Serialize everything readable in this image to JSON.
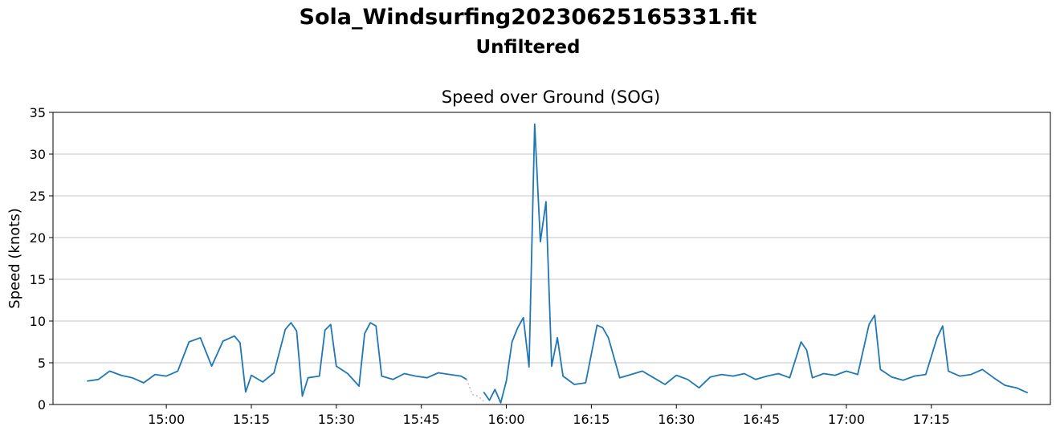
{
  "figure": {
    "suptitle": "Sola_Windsurfing20230625165331.fit",
    "subtitle": "Unfiltered"
  },
  "chart_data": {
    "type": "line",
    "title": "Speed over Ground (SOG)",
    "xlabel": "",
    "ylabel": "Speed (knots)",
    "x_unit": "time of day (HH:MM)",
    "xlim": [
      "14:40",
      "17:36"
    ],
    "ylim": [
      0,
      35
    ],
    "x_ticks": [
      "15:00",
      "15:15",
      "15:30",
      "15:45",
      "16:00",
      "16:15",
      "16:30",
      "16:45",
      "17:00",
      "17:15"
    ],
    "y_ticks": [
      0,
      5,
      10,
      15,
      20,
      25,
      30,
      35
    ],
    "grid": "horizontal",
    "legend": "none",
    "series": [
      {
        "color": "#1f77b4",
        "style": "solid",
        "points": [
          [
            "14:46",
            2.8
          ],
          [
            "14:48",
            3.0
          ],
          [
            "14:50",
            4.0
          ],
          [
            "14:52",
            3.5
          ],
          [
            "14:54",
            3.2
          ],
          [
            "14:56",
            2.6
          ],
          [
            "14:58",
            3.6
          ],
          [
            "15:00",
            3.4
          ],
          [
            "15:02",
            4.0
          ],
          [
            "15:04",
            7.5
          ],
          [
            "15:06",
            8.0
          ],
          [
            "15:08",
            4.6
          ],
          [
            "15:10",
            7.6
          ],
          [
            "15:12",
            8.2
          ],
          [
            "15:13",
            7.4
          ],
          [
            "15:14",
            1.5
          ],
          [
            "15:15",
            3.5
          ],
          [
            "15:17",
            2.7
          ],
          [
            "15:19",
            3.8
          ],
          [
            "15:21",
            9.0
          ],
          [
            "15:22",
            9.8
          ],
          [
            "15:23",
            8.8
          ],
          [
            "15:24",
            1.0
          ],
          [
            "15:25",
            3.2
          ],
          [
            "15:27",
            3.4
          ],
          [
            "15:28",
            8.9
          ],
          [
            "15:29",
            9.6
          ],
          [
            "15:30",
            4.6
          ],
          [
            "15:32",
            3.7
          ],
          [
            "15:34",
            2.2
          ],
          [
            "15:35",
            8.5
          ],
          [
            "15:36",
            9.8
          ],
          [
            "15:37",
            9.4
          ],
          [
            "15:38",
            3.4
          ],
          [
            "15:40",
            3.0
          ],
          [
            "15:42",
            3.7
          ],
          [
            "15:44",
            3.4
          ],
          [
            "15:46",
            3.2
          ],
          [
            "15:48",
            3.8
          ],
          [
            "15:50",
            3.6
          ],
          [
            "15:52",
            3.4
          ],
          [
            "15:53",
            3.0
          ]
        ]
      },
      {
        "color": "#1f77b4",
        "style": "solid",
        "points": [
          [
            "15:56",
            1.5
          ],
          [
            "15:57",
            0.5
          ],
          [
            "15:58",
            1.8
          ],
          [
            "15:59",
            0.2
          ],
          [
            "16:00",
            2.8
          ],
          [
            "16:01",
            7.5
          ],
          [
            "16:02",
            9.2
          ],
          [
            "16:03",
            10.4
          ],
          [
            "16:04",
            4.5
          ],
          [
            "16:05",
            33.6
          ],
          [
            "16:06",
            19.5
          ],
          [
            "16:07",
            24.3
          ],
          [
            "16:08",
            4.6
          ],
          [
            "16:09",
            8.0
          ],
          [
            "16:10",
            3.4
          ],
          [
            "16:12",
            2.4
          ],
          [
            "16:14",
            2.6
          ],
          [
            "16:16",
            9.5
          ],
          [
            "16:17",
            9.2
          ],
          [
            "16:18",
            8.0
          ],
          [
            "16:20",
            3.2
          ],
          [
            "16:22",
            3.6
          ],
          [
            "16:24",
            4.0
          ],
          [
            "16:26",
            3.2
          ],
          [
            "16:28",
            2.4
          ],
          [
            "16:30",
            3.5
          ],
          [
            "16:32",
            3.0
          ],
          [
            "16:34",
            2.0
          ],
          [
            "16:36",
            3.3
          ],
          [
            "16:38",
            3.6
          ],
          [
            "16:40",
            3.4
          ],
          [
            "16:42",
            3.7
          ],
          [
            "16:44",
            3.0
          ],
          [
            "16:46",
            3.4
          ],
          [
            "16:48",
            3.7
          ],
          [
            "16:50",
            3.2
          ],
          [
            "16:52",
            7.5
          ],
          [
            "16:53",
            6.5
          ],
          [
            "16:54",
            3.2
          ],
          [
            "16:56",
            3.7
          ],
          [
            "16:58",
            3.5
          ],
          [
            "17:00",
            4.0
          ],
          [
            "17:02",
            3.6
          ],
          [
            "17:04",
            9.6
          ],
          [
            "17:05",
            10.7
          ],
          [
            "17:06",
            4.2
          ],
          [
            "17:08",
            3.3
          ],
          [
            "17:10",
            2.9
          ],
          [
            "17:12",
            3.4
          ],
          [
            "17:14",
            3.6
          ],
          [
            "17:16",
            8.0
          ],
          [
            "17:17",
            9.4
          ],
          [
            "17:18",
            4.0
          ],
          [
            "17:20",
            3.4
          ],
          [
            "17:22",
            3.6
          ],
          [
            "17:24",
            4.2
          ],
          [
            "17:26",
            3.2
          ],
          [
            "17:28",
            2.3
          ],
          [
            "17:30",
            2.0
          ],
          [
            "17:32",
            1.4
          ]
        ]
      },
      {
        "color": "#c0c0c0",
        "style": "dotted",
        "points": [
          [
            "15:53",
            3.0
          ],
          [
            "15:54",
            1.2
          ],
          [
            "15:55",
            1.0
          ],
          [
            "15:56",
            0.4
          ]
        ]
      }
    ]
  }
}
